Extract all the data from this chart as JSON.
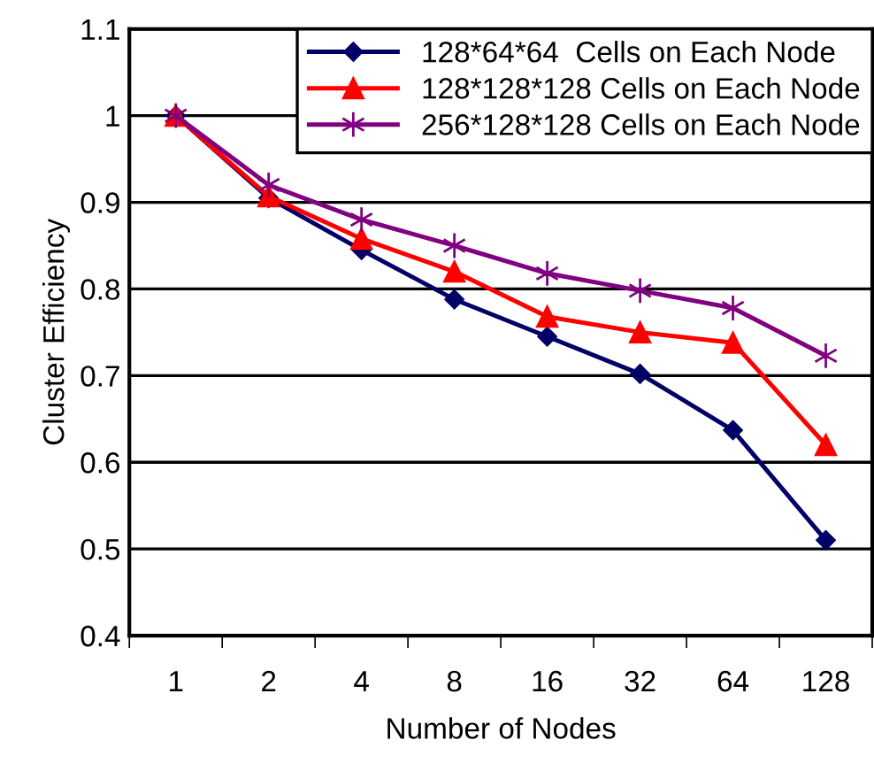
{
  "chart_data": {
    "type": "line",
    "xlabel": "Number of Nodes",
    "ylabel": "Cluster Efficiency",
    "categories": [
      "1",
      "2",
      "4",
      "8",
      "16",
      "32",
      "64",
      "128"
    ],
    "series": [
      {
        "name": "128*64*64  Cells on Each Node",
        "color": "#000066",
        "marker": "diamond",
        "values": [
          1.0,
          0.905,
          0.845,
          0.788,
          0.745,
          0.702,
          0.637,
          0.51
        ]
      },
      {
        "name": "128*128*128 Cells on Each Node",
        "color": "#ff0000",
        "marker": "triangle",
        "values": [
          1.0,
          0.907,
          0.858,
          0.82,
          0.768,
          0.75,
          0.738,
          0.62
        ]
      },
      {
        "name": "256*128*128 Cells on Each Node",
        "color": "#800080",
        "marker": "cross",
        "values": [
          1.0,
          0.92,
          0.88,
          0.85,
          0.818,
          0.798,
          0.778,
          0.723
        ]
      }
    ],
    "ylim": [
      0.4,
      1.1
    ],
    "yticks": [
      0.4,
      0.5,
      0.6,
      0.7,
      0.8,
      0.9,
      1,
      1.1
    ],
    "grid": "y",
    "legend": "top right"
  }
}
